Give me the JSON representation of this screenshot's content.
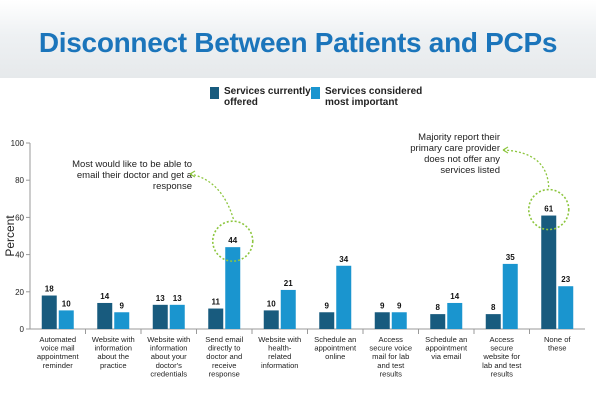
{
  "header": {
    "title": "Disconnect Between Patients and PCPs"
  },
  "colors": {
    "offered": "#185b7e",
    "important": "#1a95cf",
    "axis": "#9a9a9a",
    "highlight": "#8dc63f"
  },
  "legend": [
    {
      "label": "Services currently offered",
      "color": "#185b7e"
    },
    {
      "label": "Services considered most important",
      "color": "#1a95cf"
    }
  ],
  "annotations": {
    "email": "Most would like to be able to email their doctor and get a response",
    "none": "Majority report their primary care provider does not offer any services listed"
  },
  "chart_data": {
    "type": "bar",
    "ylabel": "Percent",
    "xlabel": "",
    "ylim": [
      0,
      100
    ],
    "yticks": [
      0,
      20,
      40,
      60,
      80,
      100
    ],
    "categories": [
      "Automated voice mail appointment reminder",
      "Website with information about the practice",
      "Website with information about your doctor's credentials",
      "Send email directly to doctor and receive response",
      "Website with health-related information",
      "Schedule an appointment online",
      "Access secure voice mail for lab and test results",
      "Schedule an appointment via email",
      "Access secure website for lab and test results",
      "None of these"
    ],
    "series": [
      {
        "name": "Services currently offered",
        "values": [
          18,
          14,
          13,
          11,
          10,
          9,
          9,
          8,
          8,
          61
        ]
      },
      {
        "name": "Services considered most important",
        "values": [
          10,
          9,
          13,
          44,
          21,
          34,
          9,
          14,
          35,
          23
        ]
      }
    ],
    "legend_position": "top",
    "grid": false
  }
}
